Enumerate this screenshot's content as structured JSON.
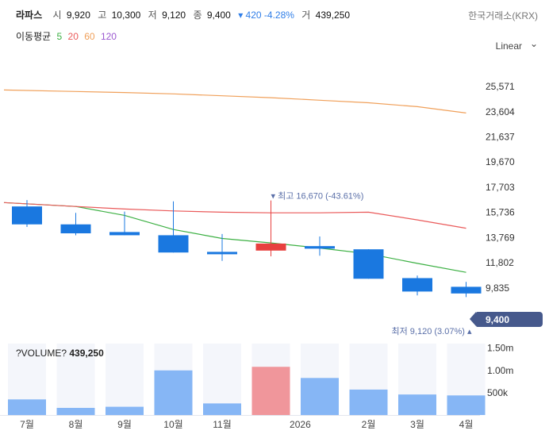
{
  "header": {
    "symbol": "라파스",
    "open_label": "시",
    "open": "9,920",
    "high_label": "고",
    "high": "10,300",
    "low_label": "저",
    "low": "9,120",
    "close_label": "종",
    "close": "9,400",
    "change": "▾ 420 -4.28%",
    "volume_label": "거",
    "volume": "439,250",
    "exchange": "한국거래소(KRX)"
  },
  "moving_average": {
    "label": "이동평균",
    "periods": [
      "5",
      "20",
      "60",
      "120"
    ],
    "colors": [
      "#3cb043",
      "#ea5a5a",
      "#f0a05a",
      "#9b59d0"
    ]
  },
  "scale_mode": "Linear",
  "current_price_tag": "9,400",
  "chart_data": {
    "type": "candlestick",
    "title": "라파스",
    "period": "monthly",
    "x_labels": [
      "7월",
      "8월",
      "9월",
      "10월",
      "11월",
      "2026",
      "2월",
      "3월",
      "4월"
    ],
    "y_ticks": [
      "25,571",
      "23,604",
      "21,637",
      "19,670",
      "17,703",
      "15,736",
      "13,769",
      "11,802",
      "9,835"
    ],
    "y_tick_values": [
      25571,
      23604,
      21637,
      19670,
      17703,
      15736,
      13769,
      11802,
      9835
    ],
    "ylim": [
      7900,
      27000
    ],
    "candles": [
      {
        "label": "7월",
        "open": 16200,
        "high": 16700,
        "low": 14600,
        "close": 14800,
        "volume": 350000
      },
      {
        "label": "8월",
        "open": 14800,
        "high": 15700,
        "low": 13950,
        "close": 14100,
        "volume": 160000
      },
      {
        "label": "9월",
        "open": 14200,
        "high": 15800,
        "low": 13950,
        "close": 13950,
        "volume": 185000
      },
      {
        "label": "10월",
        "open": 13950,
        "high": 16600,
        "low": 12600,
        "close": 12600,
        "volume": 1000000
      },
      {
        "label": "11월",
        "open": 12650,
        "high": 14050,
        "low": 11950,
        "close": 12500,
        "volume": 260000
      },
      {
        "label": "2026",
        "open": 12750,
        "high": 16670,
        "low": 12300,
        "close": 13300,
        "volume": 1080000
      },
      {
        "label": "2026-01",
        "open": 13100,
        "high": 13850,
        "low": 12350,
        "close": 12900,
        "volume": 830000
      },
      {
        "label": "2월",
        "open": 12850,
        "high": 12850,
        "low": 10550,
        "close": 10550,
        "volume": 570000
      },
      {
        "label": "3월",
        "open": 10600,
        "high": 10800,
        "low": 9250,
        "close": 9550,
        "volume": 460000
      },
      {
        "label": "4월",
        "open": 9920,
        "high": 10300,
        "low": 9120,
        "close": 9400,
        "volume": 439250
      }
    ],
    "ma_series": [
      {
        "name": "5",
        "color": "#3cb043",
        "values": [
          16500,
          16200,
          15500,
          14400,
          13700,
          13350,
          12950,
          12500,
          11750,
          11050
        ]
      },
      {
        "name": "20",
        "color": "#ea5a5a",
        "values": [
          16500,
          16200,
          16000,
          15850,
          15750,
          15700,
          15700,
          15750,
          15150,
          14500
        ]
      },
      {
        "name": "60",
        "color": "#f0a05a",
        "values": [
          25300,
          25180,
          25100,
          25000,
          24850,
          24700,
          24500,
          24300,
          24000,
          23500
        ]
      }
    ],
    "annotations": {
      "high": {
        "text": "▾ 최고 16,670 (-43.61%)",
        "value": 16670
      },
      "low": {
        "text": "최저 9,120 (3.07%) ▴",
        "value": 9120
      }
    },
    "volume_panel": {
      "label": "?VOLUME?",
      "value": "439,250",
      "ticks": [
        "1.50m",
        "1.00m",
        "500k"
      ],
      "tick_values": [
        1500000,
        1000000,
        500000
      ],
      "max": 1600000
    }
  }
}
